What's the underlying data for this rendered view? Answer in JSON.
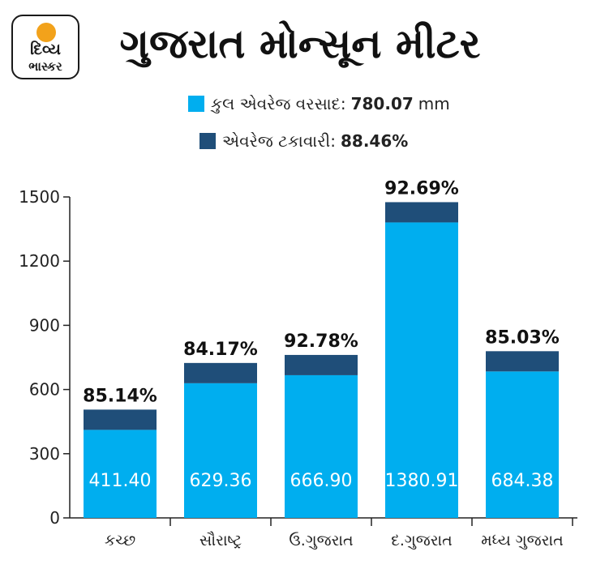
{
  "logo": {
    "line1": "દિવ્ય",
    "line2": "ભાસ્કર"
  },
  "title": "ગુજરાત મોન્સૂન મીટર",
  "legend": {
    "total_label": "કુલ એવરેજ વરસાદ:",
    "total_value": "780.07",
    "total_unit": "mm",
    "avg_label": "એવરેજ ટકાવારી:",
    "avg_value": "88.46%"
  },
  "colors": {
    "rainfall": "#00aeef",
    "average": "#1f4e79",
    "axis": "#222222"
  },
  "chart_data": {
    "type": "bar",
    "stacked": true,
    "categories": [
      "કચ્છ",
      "સૌરાષ્ટ્ર",
      "ઉ.ગુજરાત",
      "દ.ગુજરાત",
      "મધ્ય ગુજરાત"
    ],
    "series": [
      {
        "name": "કુલ એવરેજ વરસાદ",
        "values": [
          411.4,
          629.36,
          666.9,
          1380.91,
          684.38
        ],
        "labels": [
          "411.40",
          "629.36",
          "666.90",
          "1380.91",
          "684.38"
        ]
      },
      {
        "name": "એવરેજ ટકાવારી",
        "values": [
          85.14,
          84.17,
          92.78,
          92.69,
          85.03
        ],
        "labels": [
          "85.14%",
          "84.17%",
          "92.78%",
          "92.69%",
          "85.03%"
        ]
      }
    ],
    "yticks": [
      0,
      300,
      600,
      900,
      1200,
      1500
    ],
    "ylim": [
      0,
      1500
    ],
    "grid": false
  }
}
